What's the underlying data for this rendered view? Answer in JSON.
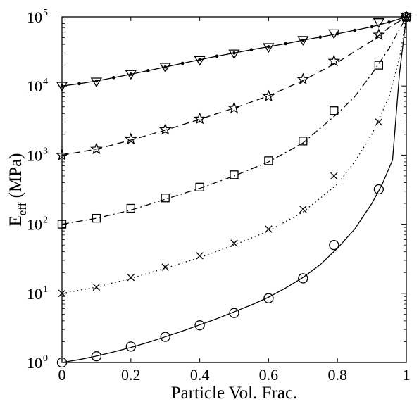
{
  "chart_data": {
    "type": "line",
    "xlabel": "Particle Vol. Frac.",
    "ylabel": {
      "main": "E",
      "sub": "eff",
      "rest": " (MPa)"
    },
    "xlim": [
      0,
      1
    ],
    "ylim": [
      1,
      100000
    ],
    "yscale": "log",
    "grid": false,
    "x_ticks": [
      {
        "value": 0,
        "label": "0"
      },
      {
        "value": 0.2,
        "label": "0.2"
      },
      {
        "value": 0.4,
        "label": "0.4"
      },
      {
        "value": 0.6,
        "label": "0.6"
      },
      {
        "value": 0.8,
        "label": "0.8"
      },
      {
        "value": 1,
        "label": "1"
      }
    ],
    "y_ticks": [
      {
        "value": 1,
        "base": "10",
        "exp": "0"
      },
      {
        "value": 10,
        "base": "10",
        "exp": "1"
      },
      {
        "value": 100,
        "base": "10",
        "exp": "2"
      },
      {
        "value": 1000,
        "base": "10",
        "exp": "3"
      },
      {
        "value": 10000,
        "base": "10",
        "exp": "4"
      },
      {
        "value": 100000,
        "base": "10",
        "exp": "5"
      }
    ],
    "series": [
      {
        "line_style": "solid",
        "line": {
          "x": [
            0,
            0.05,
            0.1,
            0.15,
            0.2,
            0.25,
            0.3,
            0.35,
            0.4,
            0.45,
            0.5,
            0.55,
            0.6,
            0.65,
            0.7,
            0.75,
            0.8,
            0.85,
            0.9,
            0.93,
            0.96,
            0.98,
            1.0
          ],
          "y": [
            1.0,
            1.1,
            1.24,
            1.42,
            1.65,
            1.95,
            2.35,
            2.85,
            3.5,
            4.3,
            5.4,
            6.8,
            8.8,
            12,
            17,
            26,
            45,
            85,
            200,
            380,
            850,
            15000,
            100000
          ]
        },
        "marker": "circle",
        "points": {
          "x": [
            0,
            0.1,
            0.2,
            0.3,
            0.4,
            0.5,
            0.6,
            0.7,
            0.79,
            0.92,
            1.0
          ],
          "y": [
            1.0,
            1.23,
            1.7,
            2.35,
            3.45,
            5.2,
            8.5,
            16.5,
            50,
            320,
            100000
          ]
        }
      },
      {
        "line_style": "dotted",
        "line": {
          "x": [
            0,
            0.1,
            0.2,
            0.3,
            0.4,
            0.5,
            0.6,
            0.7,
            0.8,
            0.85,
            0.9,
            0.95,
            0.98,
            1.0
          ],
          "y": [
            10,
            12.3,
            16.5,
            23,
            33,
            50,
            80,
            150,
            380,
            800,
            2000,
            7000,
            25000,
            100000
          ]
        },
        "marker": "x",
        "points": {
          "x": [
            0,
            0.1,
            0.2,
            0.3,
            0.4,
            0.5,
            0.6,
            0.7,
            0.79,
            0.92,
            1.0
          ],
          "y": [
            10,
            12.3,
            17,
            24,
            35,
            53,
            85,
            165,
            500,
            3000,
            100000
          ]
        }
      },
      {
        "line_style": "dash-dot",
        "line": {
          "x": [
            0,
            0.1,
            0.2,
            0.3,
            0.4,
            0.5,
            0.6,
            0.7,
            0.8,
            0.85,
            0.9,
            0.95,
            1.0
          ],
          "y": [
            100,
            122,
            160,
            230,
            330,
            500,
            800,
            1500,
            4000,
            7000,
            15000,
            35000,
            100000
          ]
        },
        "marker": "square",
        "points": {
          "x": [
            0,
            0.1,
            0.2,
            0.3,
            0.4,
            0.5,
            0.6,
            0.7,
            0.79,
            0.92,
            1.0
          ],
          "y": [
            100,
            122,
            170,
            240,
            345,
            520,
            830,
            1600,
            4400,
            20000,
            100000
          ]
        }
      },
      {
        "line_style": "dashed",
        "line": {
          "x": [
            0,
            0.1,
            0.2,
            0.3,
            0.4,
            0.5,
            0.6,
            0.7,
            0.8,
            0.9,
            0.95,
            1.0
          ],
          "y": [
            1000,
            1220,
            1650,
            2300,
            3300,
            4800,
            7200,
            12000,
            22000,
            45000,
            70000,
            100000
          ]
        },
        "marker": "star",
        "points": {
          "x": [
            0,
            0.1,
            0.2,
            0.3,
            0.4,
            0.5,
            0.6,
            0.7,
            0.79,
            0.92,
            1.0
          ],
          "y": [
            1000,
            1230,
            1700,
            2350,
            3350,
            4800,
            7100,
            12500,
            23000,
            55000,
            100000
          ]
        }
      },
      {
        "line_style": "solid-dots",
        "line": {
          "x": [
            0,
            0.05,
            0.1,
            0.15,
            0.2,
            0.25,
            0.3,
            0.35,
            0.4,
            0.45,
            0.5,
            0.55,
            0.6,
            0.65,
            0.7,
            0.75,
            0.8,
            0.85,
            0.9,
            0.95,
            1.0
          ],
          "y": [
            10000,
            10800,
            11800,
            13200,
            14800,
            16700,
            18800,
            21300,
            24000,
            27000,
            30000,
            33500,
            37000,
            41000,
            46000,
            51000,
            57000,
            64000,
            72000,
            84000,
            100000
          ]
        },
        "marker": "triangle-down",
        "points": {
          "x": [
            0,
            0.1,
            0.2,
            0.3,
            0.4,
            0.5,
            0.6,
            0.7,
            0.79,
            0.92,
            1.0
          ],
          "y": [
            10000,
            11500,
            14800,
            18800,
            23600,
            29300,
            36300,
            46000,
            57500,
            83000,
            100000
          ]
        }
      }
    ]
  }
}
